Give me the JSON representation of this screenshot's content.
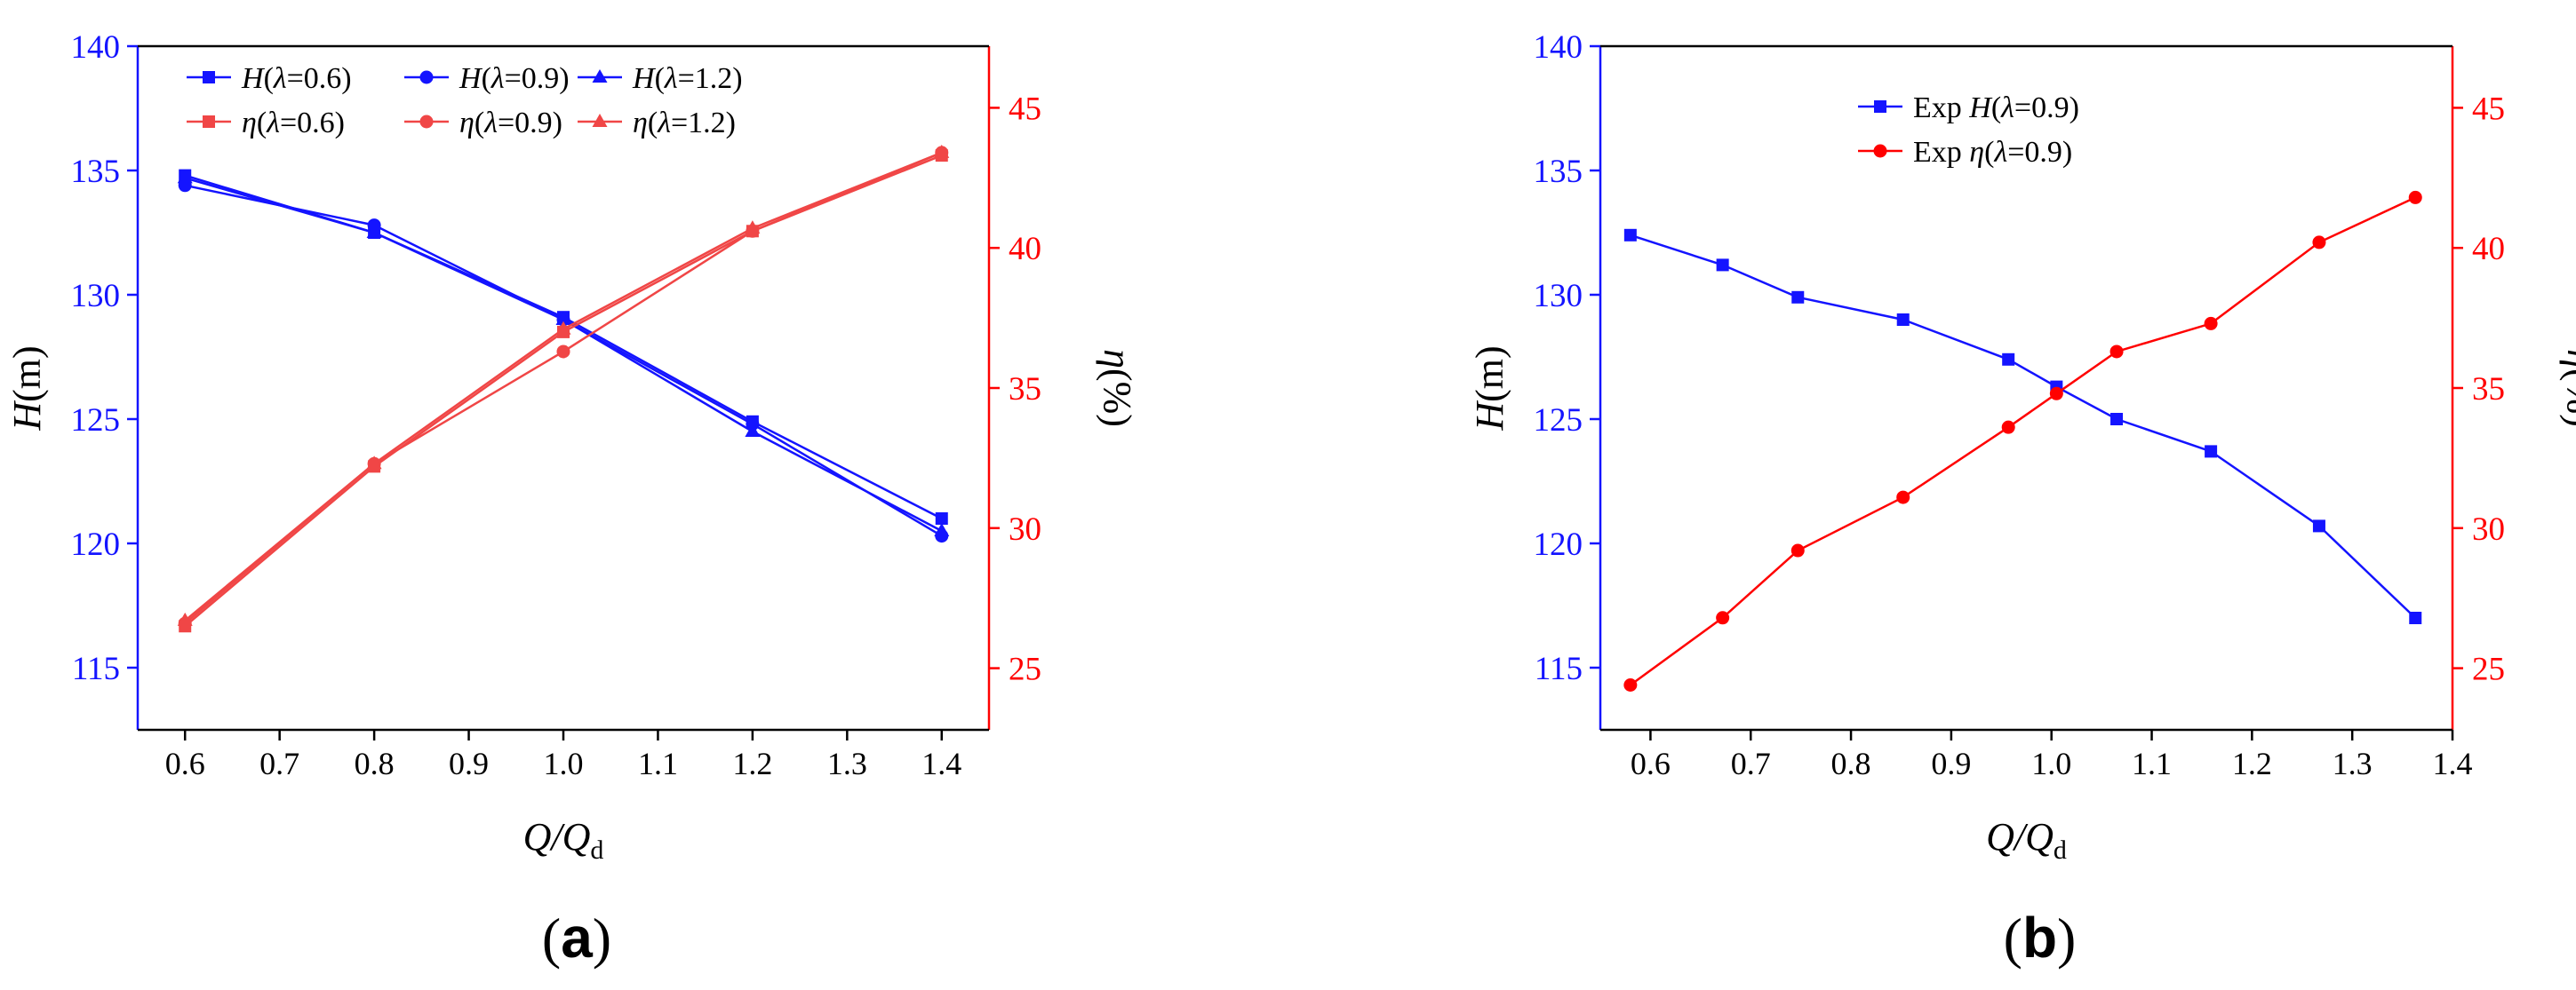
{
  "colors": {
    "blue": "#1414ff",
    "red": "#ff0000",
    "red_light": "#f04646",
    "axis": "#000000"
  },
  "chart_data": [
    {
      "type": "line",
      "panel_label": "a",
      "xlabel_main": "Q/Q",
      "xlabel_sub": "d",
      "ylabel_left": "H(m)",
      "ylabel_right": "η(%)",
      "xlim": [
        0.55,
        1.45
      ],
      "xticks": [
        0.6,
        0.7,
        0.8,
        0.9,
        1.0,
        1.1,
        1.2,
        1.3,
        1.4
      ],
      "xtick_labels": [
        "0.6",
        "0.7",
        "0.8",
        "0.9",
        "1.0",
        "1.1",
        "1.2",
        "1.3",
        "1.4"
      ],
      "ylim_left": [
        112.5,
        140
      ],
      "yticks_left": [
        115,
        120,
        125,
        130,
        135,
        140
      ],
      "ylim_right": [
        22.8,
        47.2
      ],
      "yticks_right": [
        25,
        30,
        35,
        40,
        45
      ],
      "grid": false,
      "legend_placement": "top",
      "series": [
        {
          "name": "H(λ=0.6)",
          "name_prefix": "H",
          "name_suffix": "(λ=0.6)",
          "axis": "left",
          "color": "#1414ff",
          "marker": "square",
          "x": [
            0.6,
            0.8,
            1.0,
            1.2,
            1.4
          ],
          "values": [
            134.8,
            132.5,
            129.1,
            124.9,
            121.0
          ]
        },
        {
          "name": "H(λ=0.9)",
          "name_prefix": "H",
          "name_suffix": "(λ=0.9)",
          "axis": "left",
          "color": "#1414ff",
          "marker": "circle",
          "x": [
            0.6,
            0.8,
            1.0,
            1.2,
            1.4
          ],
          "values": [
            134.4,
            132.8,
            129.0,
            124.8,
            120.3
          ]
        },
        {
          "name": "H(λ=1.2)",
          "name_prefix": "H",
          "name_suffix": "(λ=1.2)",
          "axis": "left",
          "color": "#1414ff",
          "marker": "triangle",
          "x": [
            0.6,
            0.8,
            1.0,
            1.2,
            1.4
          ],
          "values": [
            134.7,
            132.5,
            129.0,
            124.5,
            120.5
          ]
        },
        {
          "name": "η(λ=0.6)",
          "name_prefix": "η",
          "name_suffix": "(λ=0.6)",
          "axis": "right",
          "color": "#f04646",
          "marker": "square",
          "x": [
            0.6,
            0.8,
            1.0,
            1.2,
            1.4
          ],
          "values": [
            26.5,
            32.2,
            37.0,
            40.6,
            43.3
          ]
        },
        {
          "name": "η(λ=0.9)",
          "name_prefix": "η",
          "name_suffix": "(λ=0.9)",
          "axis": "right",
          "color": "#f04646",
          "marker": "circle",
          "x": [
            0.6,
            0.8,
            1.0,
            1.2,
            1.4
          ],
          "values": [
            26.6,
            32.3,
            36.3,
            40.6,
            43.4
          ]
        },
        {
          "name": "η(λ=1.2)",
          "name_prefix": "η",
          "name_suffix": "(λ=1.2)",
          "axis": "right",
          "color": "#f04646",
          "marker": "triangle",
          "x": [
            0.6,
            0.8,
            1.0,
            1.2,
            1.4
          ],
          "values": [
            26.7,
            32.3,
            37.1,
            40.7,
            43.4
          ]
        }
      ]
    },
    {
      "type": "line",
      "panel_label": "b",
      "xlabel_main": "Q/Q",
      "xlabel_sub": "d",
      "ylabel_left": "H(m)",
      "ylabel_right": "η(%)",
      "xlim": [
        0.55,
        1.4
      ],
      "xticks": [
        0.6,
        0.7,
        0.8,
        0.9,
        1.0,
        1.1,
        1.2,
        1.3,
        1.4
      ],
      "xtick_labels": [
        "0.6",
        "0.7",
        "0.8",
        "0.9",
        "1.0",
        "1.1",
        "1.2",
        "1.3",
        "1.4"
      ],
      "ylim_left": [
        112.5,
        140
      ],
      "yticks_left": [
        115,
        120,
        125,
        130,
        135,
        140
      ],
      "ylim_right": [
        22.8,
        47.2
      ],
      "yticks_right": [
        25,
        30,
        35,
        40,
        45
      ],
      "grid": false,
      "legend_placement": "top-center",
      "series": [
        {
          "name": "Exp H(λ=0.9)",
          "name_pre": "Exp ",
          "name_prefix": "H",
          "name_suffix": "(λ=0.9)",
          "axis": "left",
          "color": "#1414ff",
          "marker": "square",
          "x": [
            0.58,
            0.672,
            0.747,
            0.852,
            0.957,
            1.005,
            1.065,
            1.159,
            1.267,
            1.363
          ],
          "values": [
            132.4,
            131.2,
            129.9,
            129.0,
            127.4,
            126.3,
            125.0,
            123.7,
            120.7,
            117.0
          ]
        },
        {
          "name": "Exp η(λ=0.9)",
          "name_pre": "Exp ",
          "name_prefix": "η",
          "name_suffix": "(λ=0.9)",
          "axis": "right",
          "color": "#ff0000",
          "marker": "circle",
          "x": [
            0.58,
            0.672,
            0.747,
            0.852,
            0.957,
            1.005,
            1.065,
            1.159,
            1.267,
            1.363
          ],
          "values": [
            24.4,
            26.8,
            29.2,
            31.1,
            33.6,
            34.8,
            36.3,
            37.3,
            40.2,
            41.8
          ]
        }
      ]
    }
  ]
}
